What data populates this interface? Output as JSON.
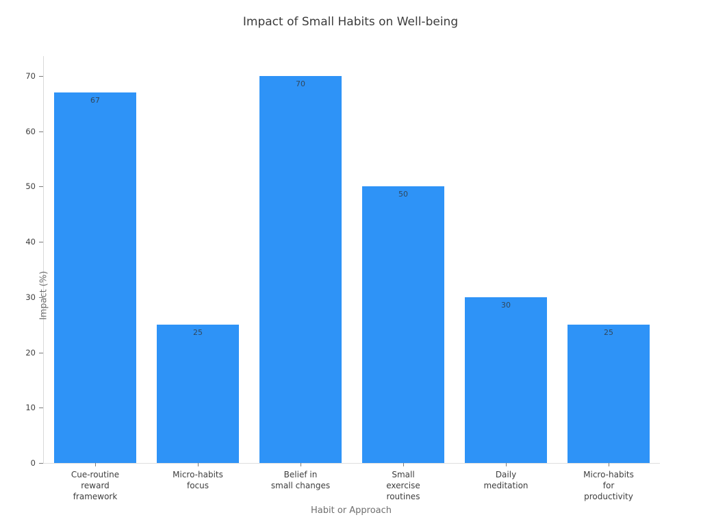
{
  "chart_data": {
    "type": "bar",
    "title": "Impact of Small Habits on Well-being",
    "xlabel": "Habit or Approach",
    "ylabel": "Impact (%)",
    "categories": [
      "Cue-routine reward framework",
      "Micro-habits focus",
      "Belief in small changes",
      "Small exercise routines",
      "Daily meditation",
      "Micro-habits for productivity"
    ],
    "category_lines": [
      [
        "Cue-routine",
        "reward",
        "framework"
      ],
      [
        "Micro-habits",
        "focus"
      ],
      [
        "Belief in",
        "small changes"
      ],
      [
        "Small",
        "exercise",
        "routines"
      ],
      [
        "Daily",
        "meditation"
      ],
      [
        "Micro-habits",
        "for",
        "productivity"
      ]
    ],
    "values": [
      67,
      25,
      70,
      50,
      30,
      25
    ],
    "value_labels": [
      "67",
      "25",
      "70",
      "50",
      "30",
      "25"
    ],
    "value_label_position": "inside-top",
    "yticks": [
      0,
      10,
      20,
      30,
      40,
      50,
      60,
      70
    ],
    "ylim": [
      0,
      73.6
    ],
    "bar_color": "#2e93f7",
    "value_label_color": "#31475c",
    "grid": false,
    "legend": false,
    "bar_width_fraction": 0.8
  }
}
